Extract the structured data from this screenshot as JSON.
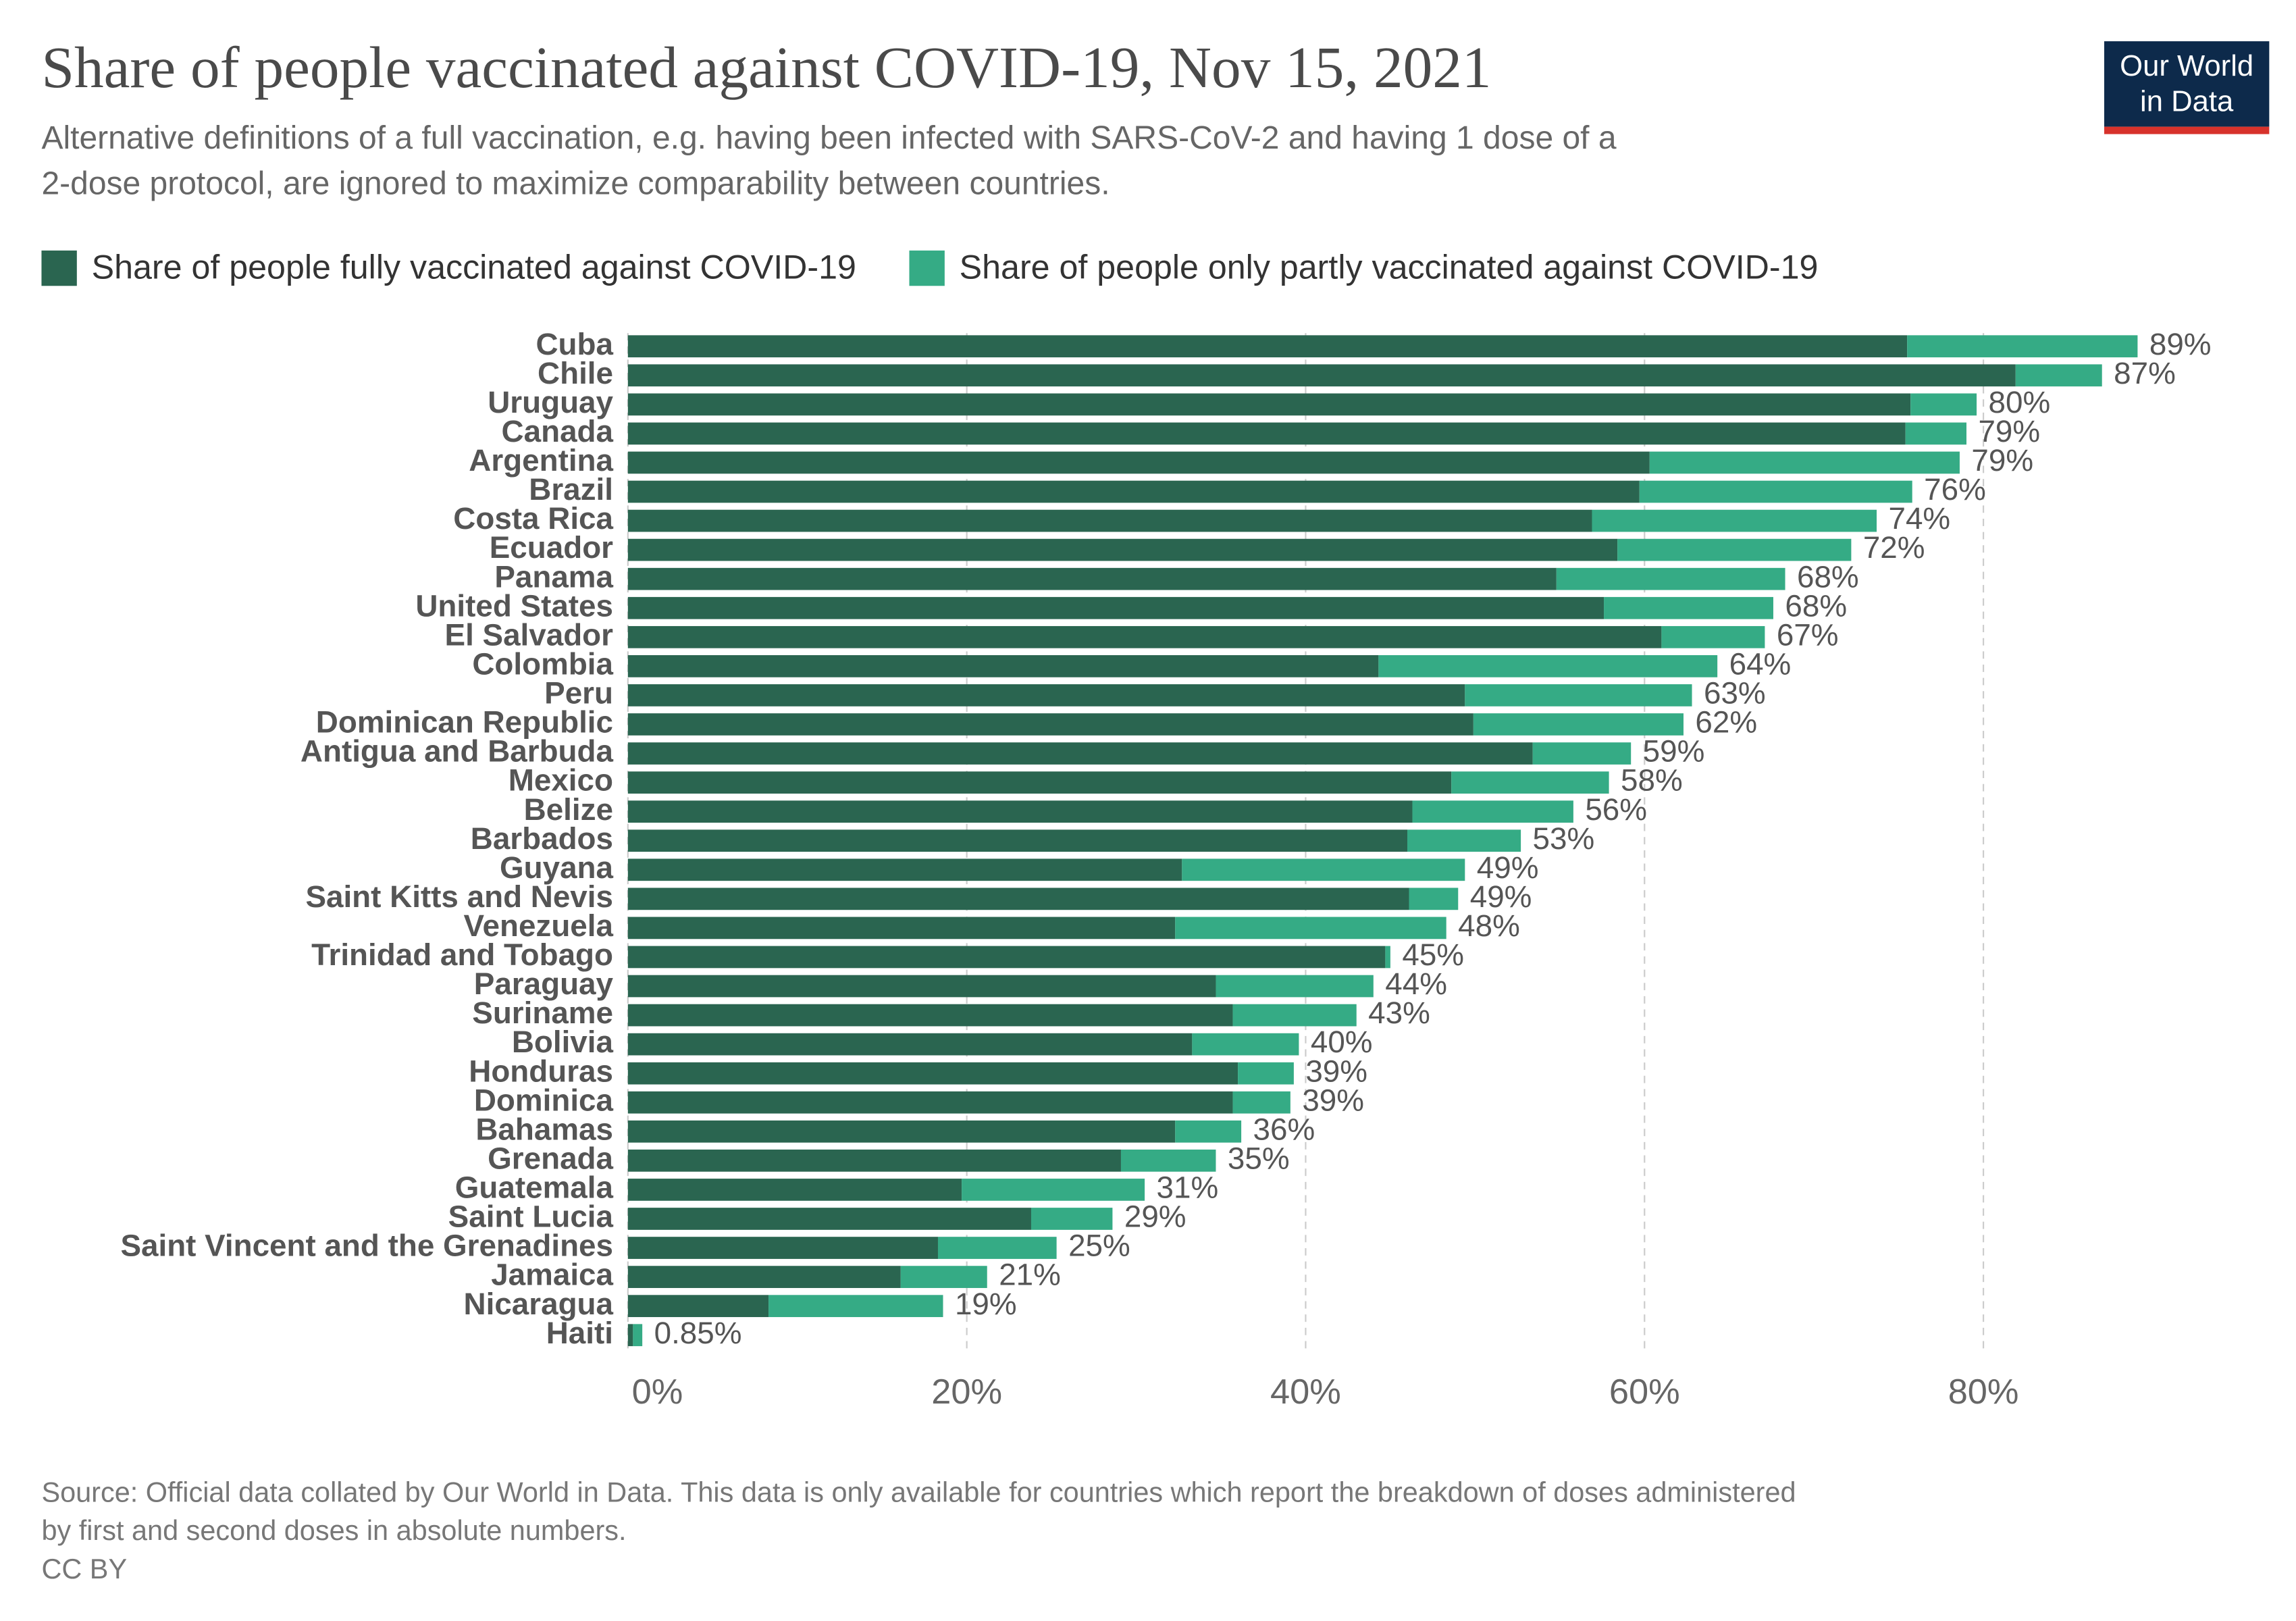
{
  "chart_data": {
    "type": "stacked-barh",
    "title": "Share of people vaccinated against COVID-19, Nov 15, 2021",
    "subtitle": [
      "Alternative definitions of a full vaccination, e.g. having been infected with SARS-CoV-2 and having 1 dose of a",
      "2-dose protocol, are ignored to maximize comparability between countries."
    ],
    "logo": [
      "Our World",
      "in Data"
    ],
    "categories": [
      "Cuba",
      "Chile",
      "Uruguay",
      "Canada",
      "Argentina",
      "Brazil",
      "Costa Rica",
      "Ecuador",
      "Panama",
      "United States",
      "El Salvador",
      "Colombia",
      "Peru",
      "Dominican Republic",
      "Antigua and Barbuda",
      "Mexico",
      "Belize",
      "Barbados",
      "Guyana",
      "Saint Kitts and Nevis",
      "Venezuela",
      "Trinidad and Tobago",
      "Paraguay",
      "Suriname",
      "Bolivia",
      "Honduras",
      "Dominica",
      "Bahamas",
      "Grenada",
      "Guatemala",
      "Saint Lucia",
      "Saint Vincent and the Grenadines",
      "Jamaica",
      "Nicaragua",
      "Haiti"
    ],
    "series": [
      {
        "name": "Share of people fully vaccinated against COVID-19",
        "color": "#2a6550",
        "values": [
          75.5,
          81.9,
          75.7,
          75.4,
          60.3,
          59.7,
          56.9,
          58.4,
          54.8,
          57.6,
          61.0,
          44.3,
          49.4,
          49.9,
          53.4,
          48.6,
          46.3,
          46.0,
          32.7,
          46.1,
          32.3,
          44.7,
          34.7,
          35.7,
          33.3,
          36.0,
          35.7,
          32.3,
          29.1,
          19.7,
          23.8,
          18.3,
          16.1,
          8.3,
          0.3
        ]
      },
      {
        "name": "Share of people only partly vaccinated against COVID-19",
        "color": "#35ab85",
        "values": [
          13.6,
          5.1,
          3.9,
          3.6,
          18.3,
          16.1,
          16.8,
          13.8,
          13.5,
          10.0,
          6.1,
          20.0,
          13.4,
          12.4,
          5.8,
          9.3,
          9.5,
          6.7,
          16.7,
          2.9,
          16.0,
          0.3,
          9.3,
          7.3,
          6.3,
          3.3,
          3.4,
          3.9,
          5.6,
          10.8,
          4.8,
          7.0,
          5.1,
          10.3,
          0.55
        ]
      }
    ],
    "total_values": [
      89.1,
      87.0,
      79.6,
      79.0,
      78.6,
      75.8,
      73.7,
      72.2,
      68.3,
      67.6,
      67.1,
      64.3,
      62.8,
      62.3,
      59.2,
      57.9,
      55.8,
      52.7,
      49.4,
      49.0,
      48.3,
      45.0,
      44.0,
      43.0,
      39.6,
      39.3,
      39.1,
      36.2,
      34.7,
      30.5,
      28.6,
      25.3,
      21.2,
      18.6,
      0.85
    ],
    "total_labels": [
      "89%",
      "87%",
      "80%",
      "79%",
      "79%",
      "76%",
      "74%",
      "72%",
      "68%",
      "68%",
      "67%",
      "64%",
      "63%",
      "62%",
      "59%",
      "58%",
      "56%",
      "53%",
      "49%",
      "49%",
      "48%",
      "45%",
      "44%",
      "43%",
      "40%",
      "39%",
      "39%",
      "36%",
      "35%",
      "31%",
      "29%",
      "25%",
      "21%",
      "19%",
      "0.85%"
    ],
    "xlim": [
      0,
      80
    ],
    "xticks": [
      {
        "value": 0,
        "label": "0%"
      },
      {
        "value": 20,
        "label": "20%"
      },
      {
        "value": 40,
        "label": "40%"
      },
      {
        "value": 60,
        "label": "60%"
      },
      {
        "value": 80,
        "label": "80%"
      }
    ],
    "grid": true,
    "source": [
      "Source: Official data collated by Our World in Data. This data is only available for countries which report the breakdown of doses administered",
      "by first and second doses in absolute numbers.",
      "CC BY"
    ]
  }
}
